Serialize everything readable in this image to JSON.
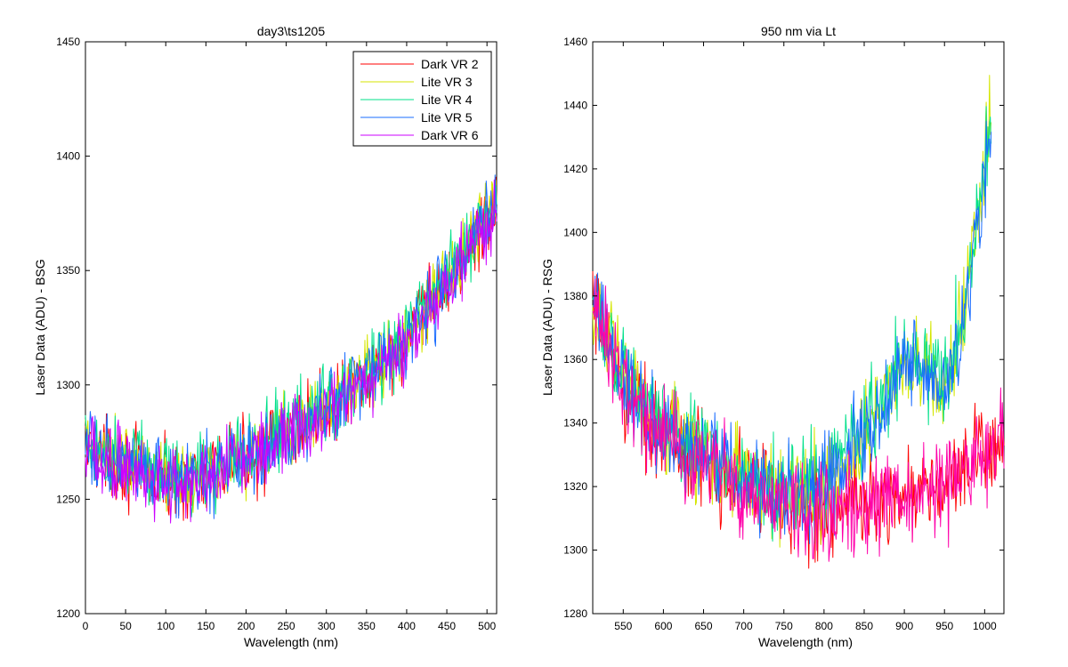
{
  "chart_data": [
    {
      "type": "line",
      "title": "day3\\ts1205",
      "xlabel": "Wavelength (nm)",
      "ylabel": "Laser Data (ADU) - BSG",
      "xlim": [
        0,
        512
      ],
      "ylim": [
        1200,
        1450
      ],
      "xticks": [
        0,
        50,
        100,
        150,
        200,
        250,
        300,
        350,
        400,
        450,
        500
      ],
      "yticks": [
        1200,
        1250,
        1300,
        1350,
        1400,
        1450
      ],
      "grid": false,
      "legend": {
        "placement": "top-right",
        "entries": [
          "Dark VR 2",
          "Lite VR 3",
          "Lite VR 4",
          "Lite VR 5",
          "Dark VR 6"
        ]
      },
      "noise_amplitude": 10,
      "series": [
        {
          "name": "Dark VR 2",
          "color": "#ff0000",
          "x": [
            0,
            50,
            100,
            150,
            200,
            250,
            300,
            350,
            400,
            450,
            500,
            512
          ],
          "y": [
            1272,
            1265,
            1258,
            1260,
            1268,
            1278,
            1289,
            1302,
            1320,
            1345,
            1372,
            1378
          ]
        },
        {
          "name": "Lite VR 3",
          "color": "#d4e600",
          "x": [
            0,
            50,
            100,
            150,
            200,
            250,
            300,
            350,
            400,
            450,
            500,
            512
          ],
          "y": [
            1274,
            1266,
            1259,
            1261,
            1269,
            1279,
            1290,
            1303,
            1321,
            1346,
            1374,
            1380
          ]
        },
        {
          "name": "Lite VR 4",
          "color": "#00e08a",
          "x": [
            0,
            50,
            100,
            150,
            200,
            250,
            300,
            350,
            400,
            450,
            500,
            512
          ],
          "y": [
            1275,
            1268,
            1260,
            1262,
            1270,
            1280,
            1291,
            1304,
            1322,
            1347,
            1375,
            1381
          ]
        },
        {
          "name": "Lite VR 5",
          "color": "#1a6cff",
          "x": [
            0,
            50,
            100,
            150,
            200,
            250,
            300,
            350,
            400,
            450,
            500,
            512
          ],
          "y": [
            1273,
            1266,
            1258,
            1260,
            1268,
            1278,
            1289,
            1302,
            1320,
            1345,
            1373,
            1379
          ]
        },
        {
          "name": "Dark VR 6",
          "color": "#cc00ff",
          "x": [
            0,
            50,
            100,
            150,
            200,
            250,
            300,
            350,
            400,
            450,
            500,
            512
          ],
          "y": [
            1271,
            1264,
            1257,
            1259,
            1267,
            1277,
            1288,
            1301,
            1319,
            1344,
            1371,
            1377
          ]
        }
      ]
    },
    {
      "type": "line",
      "title": "950 nm via Lt",
      "xlabel": "Wavelength (nm)",
      "ylabel": "Laser Data (ADU) - RSG",
      "xlim": [
        512,
        1024
      ],
      "ylim": [
        1280,
        1460
      ],
      "xticks": [
        550,
        600,
        650,
        700,
        750,
        800,
        850,
        900,
        950,
        1000
      ],
      "yticks": [
        1280,
        1300,
        1320,
        1340,
        1360,
        1380,
        1400,
        1420,
        1440,
        1460
      ],
      "grid": false,
      "noise_amplitude": 9,
      "series": [
        {
          "name": "Dark VR 2",
          "color": "#ff0000",
          "x": [
            512,
            550,
            600,
            650,
            700,
            750,
            800,
            850,
            900,
            950,
            1000,
            1024
          ],
          "y": [
            1375,
            1352,
            1336,
            1328,
            1321,
            1315,
            1312,
            1315,
            1318,
            1320,
            1330,
            1338
          ]
        },
        {
          "name": "Lite VR 3",
          "color": "#d4e600",
          "x": [
            512,
            550,
            600,
            650,
            700,
            750,
            800,
            850,
            900,
            950,
            975,
            1000,
            1008
          ],
          "y": [
            1378,
            1354,
            1338,
            1330,
            1323,
            1318,
            1320,
            1335,
            1360,
            1352,
            1375,
            1420,
            1436
          ]
        },
        {
          "name": "Lite VR 4",
          "color": "#00e08a",
          "x": [
            512,
            550,
            600,
            650,
            700,
            750,
            800,
            850,
            900,
            950,
            975,
            1000,
            1008
          ],
          "y": [
            1379,
            1355,
            1339,
            1331,
            1324,
            1319,
            1321,
            1336,
            1361,
            1353,
            1376,
            1421,
            1437
          ]
        },
        {
          "name": "Lite VR 5",
          "color": "#1a6cff",
          "x": [
            512,
            550,
            600,
            650,
            700,
            750,
            800,
            850,
            900,
            950,
            975,
            1000,
            1008
          ],
          "y": [
            1376,
            1353,
            1337,
            1329,
            1322,
            1317,
            1319,
            1334,
            1359,
            1351,
            1374,
            1419,
            1434
          ]
        },
        {
          "name": "Dark VR 6",
          "color": "#ff00aa",
          "x": [
            512,
            550,
            600,
            650,
            700,
            750,
            800,
            850,
            900,
            950,
            1000,
            1024
          ],
          "y": [
            1374,
            1351,
            1335,
            1327,
            1320,
            1314,
            1311,
            1314,
            1317,
            1319,
            1329,
            1337
          ]
        }
      ]
    }
  ]
}
